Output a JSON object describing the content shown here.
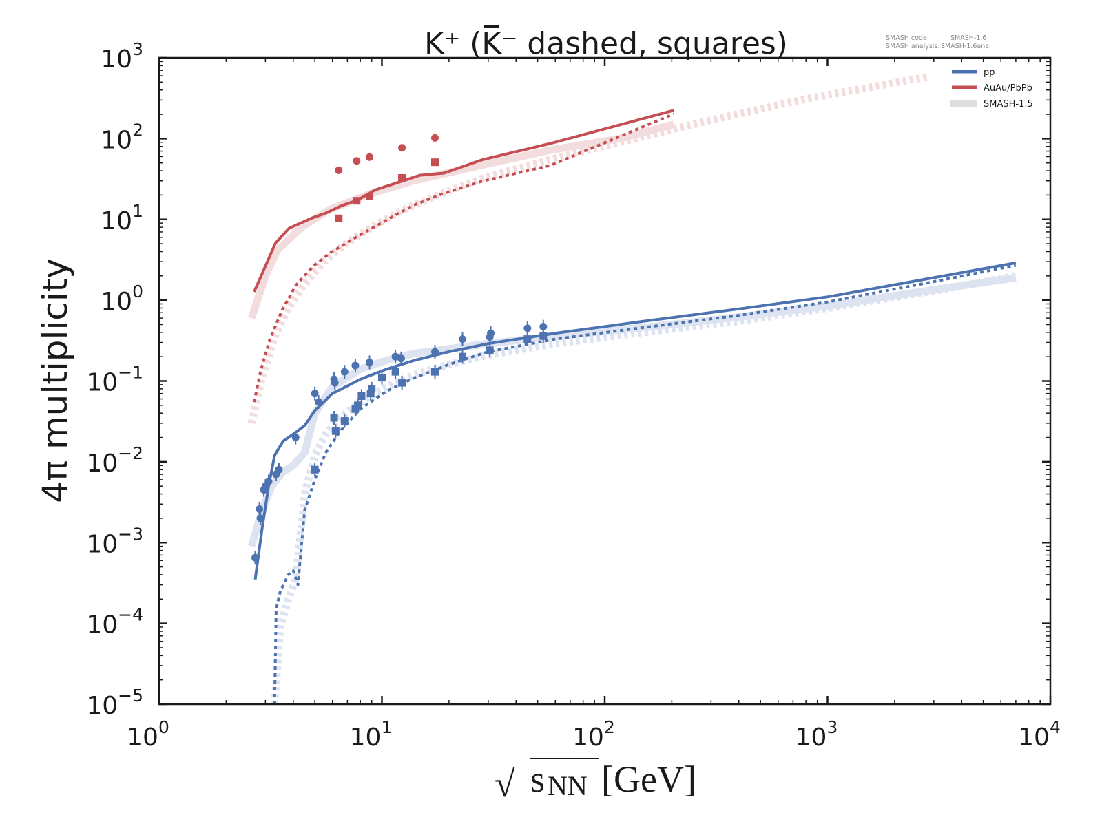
{
  "chart_data": {
    "type": "line",
    "title": "K⁺ (K̅⁻ dashed, squares)",
    "title_parts": {
      "main": "K⁺ (K̅⁻ dashed, squares)"
    },
    "xlabel": "√s_NN [GeV]",
    "xlabel_parts": {
      "sqrt": "√",
      "s": "s",
      "sub": "NN",
      "unit": "[GeV]"
    },
    "ylabel": "4π multiplicity",
    "xscale": "log",
    "yscale": "log",
    "xlim": [
      1,
      10000
    ],
    "ylim": [
      1e-05,
      1000
    ],
    "grid": false,
    "legend_position": "top-right",
    "x_ticks": [
      {
        "base": "10",
        "exp": "0",
        "value": 1
      },
      {
        "base": "10",
        "exp": "1",
        "value": 10
      },
      {
        "base": "10",
        "exp": "2",
        "value": 100
      },
      {
        "base": "10",
        "exp": "3",
        "value": 1000
      },
      {
        "base": "10",
        "exp": "4",
        "value": 10000
      }
    ],
    "y_ticks": [
      {
        "base": "10",
        "exp": "−5",
        "value": 1e-05
      },
      {
        "base": "10",
        "exp": "−4",
        "value": 0.0001
      },
      {
        "base": "10",
        "exp": "−3",
        "value": 0.001
      },
      {
        "base": "10",
        "exp": "−2",
        "value": 0.01
      },
      {
        "base": "10",
        "exp": "−1",
        "value": 0.1
      },
      {
        "base": "10",
        "exp": "0",
        "value": 1
      },
      {
        "base": "10",
        "exp": "1",
        "value": 10
      },
      {
        "base": "10",
        "exp": "2",
        "value": 100
      },
      {
        "base": "10",
        "exp": "3",
        "value": 1000
      }
    ],
    "info": {
      "line1_label": "SMASH code:",
      "line1_value": "SMASH-1.6",
      "line2_label": "SMASH analysis:",
      "line2_value": "SMASH-1.6ana"
    },
    "legend": [
      {
        "label": "pp",
        "color": "#4c72b0",
        "style": "solid"
      },
      {
        "label": "AuAu/PbPb",
        "color": "#c44e52",
        "style": "solid"
      },
      {
        "label": "SMASH-1.5",
        "color": "#dddddd",
        "style": "band"
      }
    ],
    "colors": {
      "pp": "#4c72b0",
      "AuAu": "#c44e52",
      "pp_old": "#dde3f0",
      "AuAu_old": "#f3dcdd"
    },
    "series": [
      {
        "name": "SMASH-1.5 AuAu K+ (solid)",
        "color": "#f3dcdd",
        "style": "old-solid",
        "x": [
          2.6,
          3.0,
          3.4,
          4.4,
          5.9,
          9.0,
          13.8,
          28,
          57,
          117,
          204
        ],
        "y": [
          0.6,
          2.0,
          4.2,
          8.2,
          13.5,
          21,
          30,
          47,
          72,
          100,
          150
        ]
      },
      {
        "name": "SMASH-1.5 AuAu K- (dashed)",
        "color": "#f3dcdd",
        "style": "old-dashed",
        "x": [
          2.6,
          2.9,
          3.3,
          3.8,
          4.5,
          5.5,
          7.0,
          9.0,
          12.0,
          17.0,
          28,
          57,
          117,
          300,
          800,
          2800
        ],
        "y": [
          0.03,
          0.11,
          0.35,
          0.8,
          1.6,
          3.0,
          5.2,
          8.0,
          12.5,
          19,
          32,
          55,
          90,
          170,
          310,
          580
        ]
      },
      {
        "name": "SMASH-1.5 pp K+ (solid)",
        "color": "#dde3f0",
        "style": "old-solid",
        "x": [
          2.6,
          2.9,
          3.2,
          3.6,
          4.0,
          4.5,
          5.0,
          6.0,
          8.0,
          10.5,
          14.0,
          20,
          30,
          60,
          150,
          400,
          1000,
          3000,
          7000
        ],
        "y": [
          0.0009,
          0.0025,
          0.005,
          0.0075,
          0.009,
          0.013,
          0.04,
          0.085,
          0.14,
          0.18,
          0.22,
          0.25,
          0.29,
          0.36,
          0.46,
          0.62,
          0.85,
          1.35,
          1.9
        ]
      },
      {
        "name": "SMASH-1.5 pp K- (dashed)",
        "color": "#dde3f0",
        "style": "old-dashed",
        "x": [
          3.3,
          3.5,
          3.8,
          4.1,
          4.3,
          4.5,
          5.0,
          5.6,
          6.5,
          8.0,
          10.5,
          14.0,
          20,
          30,
          60,
          150,
          400,
          1000,
          3000,
          7000
        ],
        "y": [
          1e-05,
          9e-05,
          0.0002,
          0.00035,
          0.0012,
          0.004,
          0.012,
          0.022,
          0.035,
          0.055,
          0.085,
          0.12,
          0.16,
          0.21,
          0.29,
          0.4,
          0.55,
          0.8,
          1.3,
          2.0
        ]
      },
      {
        "name": "AuAu/PbPb K+ (SMASH-1.6)",
        "color": "#c44e52",
        "style": "solid",
        "x": [
          2.67,
          3.33,
          3.84,
          4.89,
          5.53,
          6.59,
          7.72,
          9.37,
          11.5,
          14.8,
          19.0,
          28.1,
          57,
          204
        ],
        "y": [
          1.27,
          5.1,
          7.8,
          10.5,
          11.8,
          14.8,
          17.2,
          23.3,
          28,
          35.2,
          37.4,
          54.6,
          87,
          224
        ]
      },
      {
        "name": "AuAu/PbPb K- (SMASH-1.6)",
        "color": "#c44e52",
        "style": "dashed",
        "x": [
          2.67,
          2.85,
          3.14,
          3.57,
          4.12,
          4.93,
          5.88,
          7.8,
          10.4,
          13.8,
          18.4,
          28.1,
          57,
          204
        ],
        "y": [
          0.055,
          0.13,
          0.33,
          0.76,
          1.54,
          2.66,
          3.87,
          6.2,
          9.7,
          14.9,
          20.4,
          29.7,
          46.6,
          202
        ]
      },
      {
        "name": "pp K+ (SMASH-1.6)",
        "color": "#4c72b0",
        "style": "solid",
        "x": [
          2.7,
          2.9,
          3.1,
          3.3,
          3.6,
          4.0,
          4.5,
          5.0,
          6.0,
          8.0,
          10.5,
          14.0,
          20,
          30,
          60,
          150,
          400,
          1000,
          3000,
          7000
        ],
        "y": [
          0.00035,
          0.0015,
          0.005,
          0.012,
          0.018,
          0.022,
          0.028,
          0.043,
          0.07,
          0.105,
          0.14,
          0.18,
          0.23,
          0.29,
          0.39,
          0.55,
          0.78,
          1.1,
          1.9,
          2.9
        ]
      },
      {
        "name": "pp K- (SMASH-1.6)",
        "color": "#4c72b0",
        "style": "dashed",
        "x": [
          3.3,
          3.35,
          3.5,
          3.8,
          4.0,
          4.2,
          4.5,
          5.0,
          5.6,
          6.5,
          8.0,
          10.5,
          14.0,
          20,
          30,
          60,
          150,
          400,
          1000,
          3000,
          7000
        ],
        "y": [
          1e-05,
          0.00015,
          0.00025,
          0.0004,
          0.00045,
          0.0003,
          0.0025,
          0.006,
          0.013,
          0.024,
          0.045,
          0.075,
          0.11,
          0.16,
          0.23,
          0.33,
          0.46,
          0.65,
          0.95,
          1.7,
          2.7
        ]
      }
    ],
    "points": [
      {
        "name": "AuAu/PbPb K+ data",
        "color": "#c44e52",
        "marker": "circle",
        "x": [
          6.4,
          7.7,
          8.8,
          12.3,
          17.3
        ],
        "y": [
          40.6,
          53,
          59,
          77,
          102
        ]
      },
      {
        "name": "AuAu/PbPb K- data",
        "color": "#c44e52",
        "marker": "square",
        "x": [
          6.4,
          7.7,
          8.8,
          12.3,
          17.3
        ],
        "y": [
          10.3,
          17,
          19.2,
          32.6,
          51
        ]
      },
      {
        "name": "pp K+ data",
        "color": "#4c72b0",
        "marker": "circle",
        "x": [
          2.7,
          2.82,
          2.85,
          2.95,
          3.0,
          3.1,
          3.35,
          3.45,
          4.1,
          5.0,
          5.2,
          6.1,
          6.15,
          6.8,
          7.6,
          8.8,
          11.5,
          12.2,
          17.3,
          23.0,
          30.5,
          30.8,
          45,
          53
        ],
        "y": [
          0.00065,
          0.0026,
          0.002,
          0.0045,
          0.005,
          0.0057,
          0.007,
          0.008,
          0.02,
          0.07,
          0.055,
          0.105,
          0.095,
          0.13,
          0.155,
          0.17,
          0.2,
          0.19,
          0.23,
          0.33,
          0.35,
          0.39,
          0.45,
          0.47
        ]
      },
      {
        "name": "pp K- data",
        "color": "#4c72b0",
        "marker": "square",
        "x": [
          5.0,
          6.1,
          6.2,
          6.8,
          7.6,
          7.8,
          8.1,
          8.9,
          9.0,
          10.0,
          11.5,
          12.3,
          17.3,
          23.0,
          30.5,
          45,
          53
        ],
        "y": [
          0.008,
          0.035,
          0.024,
          0.032,
          0.045,
          0.05,
          0.065,
          0.07,
          0.08,
          0.11,
          0.13,
          0.095,
          0.13,
          0.2,
          0.24,
          0.33,
          0.36
        ]
      }
    ]
  }
}
